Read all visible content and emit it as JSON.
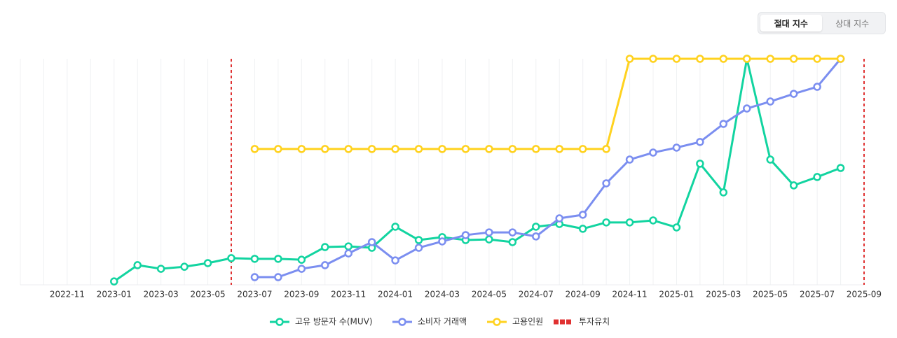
{
  "controls": [
    "절대 지수",
    "상대 지수"
  ],
  "chart_data": {
    "type": "line",
    "categories": [
      null,
      null,
      "2022-11",
      null,
      "2023-01",
      null,
      "2023-03",
      null,
      "2023-05",
      null,
      "2023-07",
      null,
      "2023-09",
      null,
      "2023-11",
      null,
      "2024-01",
      null,
      "2024-03",
      null,
      "2024-05",
      null,
      "2024-07",
      null,
      "2024-09",
      null,
      "2024-11",
      null,
      "2025-01",
      null,
      "2025-03",
      null,
      "2025-05",
      null,
      "2025-07",
      null,
      "2025-09"
    ],
    "ylim": [
      0,
      100
    ],
    "grid": true,
    "legend": "bottom",
    "series": [
      {
        "name": "고유 방문자 수(MUV)",
        "color": "#12d4a0",
        "values": [
          null,
          null,
          null,
          null,
          1.5,
          8.7,
          7.1,
          8.0,
          9.6,
          11.8,
          11.5,
          11.5,
          11.1,
          16.7,
          17.0,
          16.4,
          25.7,
          19.8,
          21.1,
          19.8,
          20.1,
          18.9,
          25.7,
          26.9,
          24.8,
          27.6,
          27.6,
          28.5,
          25.4,
          53.6,
          40.9,
          100,
          55.4,
          44.0,
          47.7,
          51.7,
          null
        ]
      },
      {
        "name": "소비자 거래액",
        "color": "#7b8ef0",
        "values": [
          null,
          null,
          null,
          null,
          null,
          null,
          null,
          null,
          null,
          null,
          3.4,
          3.4,
          7.1,
          8.7,
          13.9,
          18.9,
          10.8,
          16.4,
          19.2,
          22.0,
          23.2,
          23.2,
          21.4,
          29.4,
          31.0,
          44.9,
          55.4,
          58.5,
          60.7,
          63.2,
          71.2,
          78.0,
          81.1,
          84.5,
          87.6,
          100,
          null
        ]
      },
      {
        "name": "고용인원",
        "color": "#ffd21f",
        "values": [
          null,
          null,
          null,
          null,
          null,
          null,
          null,
          null,
          null,
          null,
          60.1,
          60.1,
          60.1,
          60.1,
          60.1,
          60.1,
          60.1,
          60.1,
          60.1,
          60.1,
          60.1,
          60.1,
          60.1,
          60.1,
          60.1,
          60.1,
          100,
          100,
          100,
          100,
          100,
          100,
          100,
          100,
          100,
          100,
          null
        ]
      }
    ],
    "events": {
      "name": "투자유치",
      "color": "#e03131",
      "x": [
        9,
        36
      ]
    }
  }
}
